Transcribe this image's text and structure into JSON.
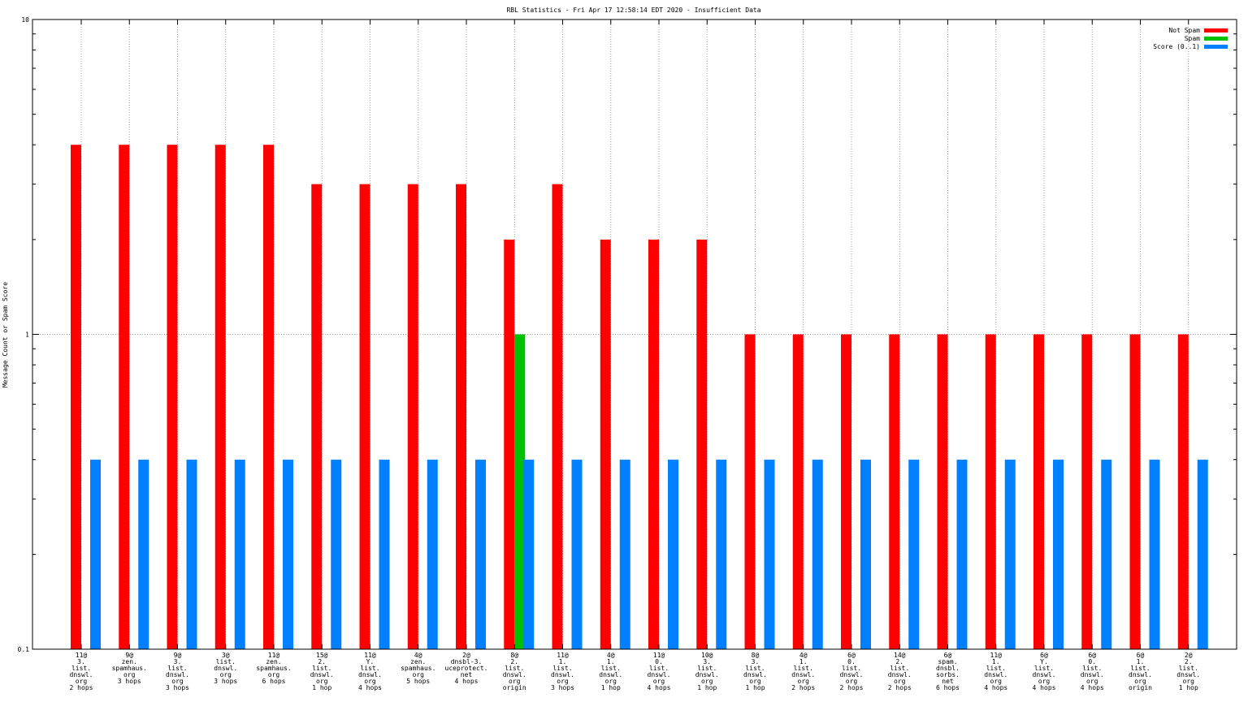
{
  "chart_data": {
    "type": "bar",
    "title": "RBL Statistics - Fri Apr 17 12:58:14 EDT 2020 - Insufficient Data",
    "ylabel": "Message Count or Spam Score",
    "xlabel": "",
    "yscale": "log",
    "ylim": [
      0.1,
      10
    ],
    "yticks": [
      "0.1",
      "1",
      "10"
    ],
    "grid": true,
    "legend_position": "top-right",
    "categories": [
      [
        "11@",
        "3.",
        "list.",
        "dnswl.",
        "org",
        "2 hops"
      ],
      [
        "9@",
        "zen.",
        "spamhaus.",
        "org",
        "3 hops"
      ],
      [
        "9@",
        "3.",
        "list.",
        "dnswl.",
        "org",
        "3 hops"
      ],
      [
        "3@",
        "list.",
        "dnswl.",
        "org",
        "3 hops"
      ],
      [
        "11@",
        "zen.",
        "spamhaus.",
        "org",
        "6 hops"
      ],
      [
        "15@",
        "2.",
        "list.",
        "dnswl.",
        "org",
        "1 hop"
      ],
      [
        "11@",
        "Y.",
        "list.",
        "dnswl.",
        "org",
        "4 hops"
      ],
      [
        "4@",
        "zen.",
        "spamhaus.",
        "org",
        "5 hops"
      ],
      [
        "2@",
        "dnsbl-3.",
        "uceprotect.",
        "net",
        "4 hops"
      ],
      [
        "8@",
        "2.",
        "list.",
        "dnswl.",
        "org",
        "origin"
      ],
      [
        "11@",
        "1.",
        "list.",
        "dnswl.",
        "org",
        "3 hops"
      ],
      [
        "4@",
        "1.",
        "list.",
        "dnswl.",
        "org",
        "1 hop"
      ],
      [
        "11@",
        "0.",
        "list.",
        "dnswl.",
        "org",
        "4 hops"
      ],
      [
        "10@",
        "3.",
        "list.",
        "dnswl.",
        "org",
        "1 hop"
      ],
      [
        "8@",
        "3.",
        "list.",
        "dnswl.",
        "org",
        "1 hop"
      ],
      [
        "4@",
        "1.",
        "list.",
        "dnswl.",
        "org",
        "2 hops"
      ],
      [
        "6@",
        "0.",
        "list.",
        "dnswl.",
        "org",
        "2 hops"
      ],
      [
        "14@",
        "2.",
        "list.",
        "dnswl.",
        "org",
        "2 hops"
      ],
      [
        "6@",
        "spam.",
        "dnsbl.",
        "sorbs.",
        "net",
        "6 hops"
      ],
      [
        "11@",
        "1.",
        "list.",
        "dnswl.",
        "org",
        "4 hops"
      ],
      [
        "6@",
        "Y.",
        "list.",
        "dnswl.",
        "org",
        "4 hops"
      ],
      [
        "6@",
        "0.",
        "list.",
        "dnswl.",
        "org",
        "4 hops"
      ],
      [
        "6@",
        "1.",
        "list.",
        "dnswl.",
        "org",
        "origin"
      ],
      [
        "2@",
        "2.",
        "list.",
        "dnswl.",
        "org",
        "1 hop"
      ]
    ],
    "series": [
      {
        "name": "Not Spam",
        "color": "#ff0000",
        "values": [
          4,
          4,
          4,
          4,
          4,
          3,
          3,
          3,
          3,
          2,
          3,
          2,
          2,
          2,
          1,
          1,
          1,
          1,
          1,
          1,
          1,
          1,
          1,
          1
        ]
      },
      {
        "name": "Spam",
        "color": "#00c000",
        "values": [
          0,
          0,
          0,
          0,
          0,
          0,
          0,
          0,
          0,
          1,
          0,
          0,
          0,
          0,
          0,
          0,
          0,
          0,
          0,
          0,
          0,
          0,
          0,
          0
        ]
      },
      {
        "name": "Score (0..1)",
        "color": "#0080ff",
        "values": [
          0.4,
          0.4,
          0.4,
          0.4,
          0.4,
          0.4,
          0.4,
          0.4,
          0.4,
          0.4,
          0.4,
          0.4,
          0.4,
          0.4,
          0.4,
          0.4,
          0.4,
          0.4,
          0.4,
          0.4,
          0.4,
          0.4,
          0.4,
          0.4
        ]
      }
    ]
  }
}
